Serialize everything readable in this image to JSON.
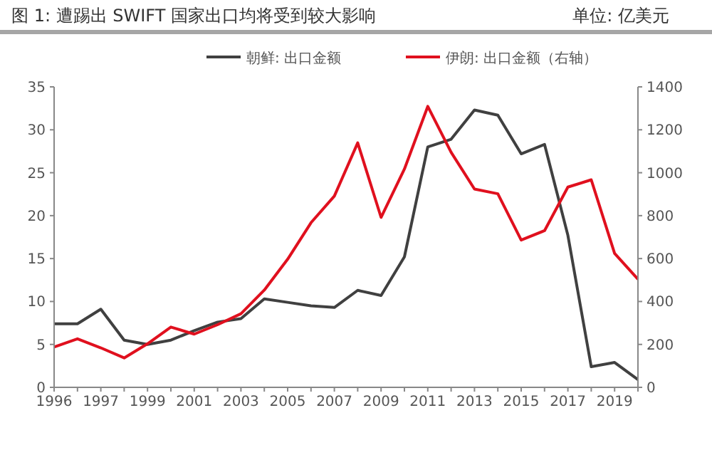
{
  "chart_data": {
    "type": "line",
    "title": "图 1:  遭踢出 SWIFT 国家出口均将受到较大影响",
    "annotations": [
      "单位: 亿美元"
    ],
    "categories": [
      "1996",
      null,
      "1997",
      null,
      "1999",
      null,
      "2001",
      null,
      "2003",
      null,
      "2005",
      null,
      "2007",
      null,
      "2009",
      null,
      "2011",
      null,
      "2013",
      null,
      "2015",
      null,
      "2017",
      null,
      "2019",
      null
    ],
    "series": [
      {
        "name": "朝鲜: 出口金额",
        "color": "#404040",
        "values": [
          7.4,
          7.4,
          9.1,
          5.5,
          5.0,
          5.5,
          6.6,
          7.6,
          8.0,
          10.3,
          9.9,
          9.5,
          9.3,
          11.3,
          10.7,
          15.2,
          28.0,
          28.9,
          32.3,
          31.7,
          27.2,
          28.3,
          17.7,
          2.4,
          2.9,
          0.9
        ]
      },
      {
        "name": "伊朗: 出口金额（右轴）",
        "color": "#e0101e",
        "axis": "y2",
        "values": [
          188,
          226,
          184,
          137,
          203,
          281,
          248,
          292,
          343,
          453,
          597,
          767,
          891,
          1139,
          792,
          1017,
          1309,
          1095,
          924,
          902,
          686,
          730,
          933,
          967,
          624,
          504
        ]
      }
    ],
    "ylim": [
      0,
      35
    ],
    "yticks": [
      0,
      5,
      10,
      15,
      20,
      25,
      30,
      35
    ],
    "y2lim": [
      0,
      1400
    ],
    "y2ticks": [
      0,
      200,
      400,
      600,
      800,
      1000,
      1200,
      1400
    ],
    "legend": "top",
    "grid": false,
    "line_style": "solid"
  }
}
